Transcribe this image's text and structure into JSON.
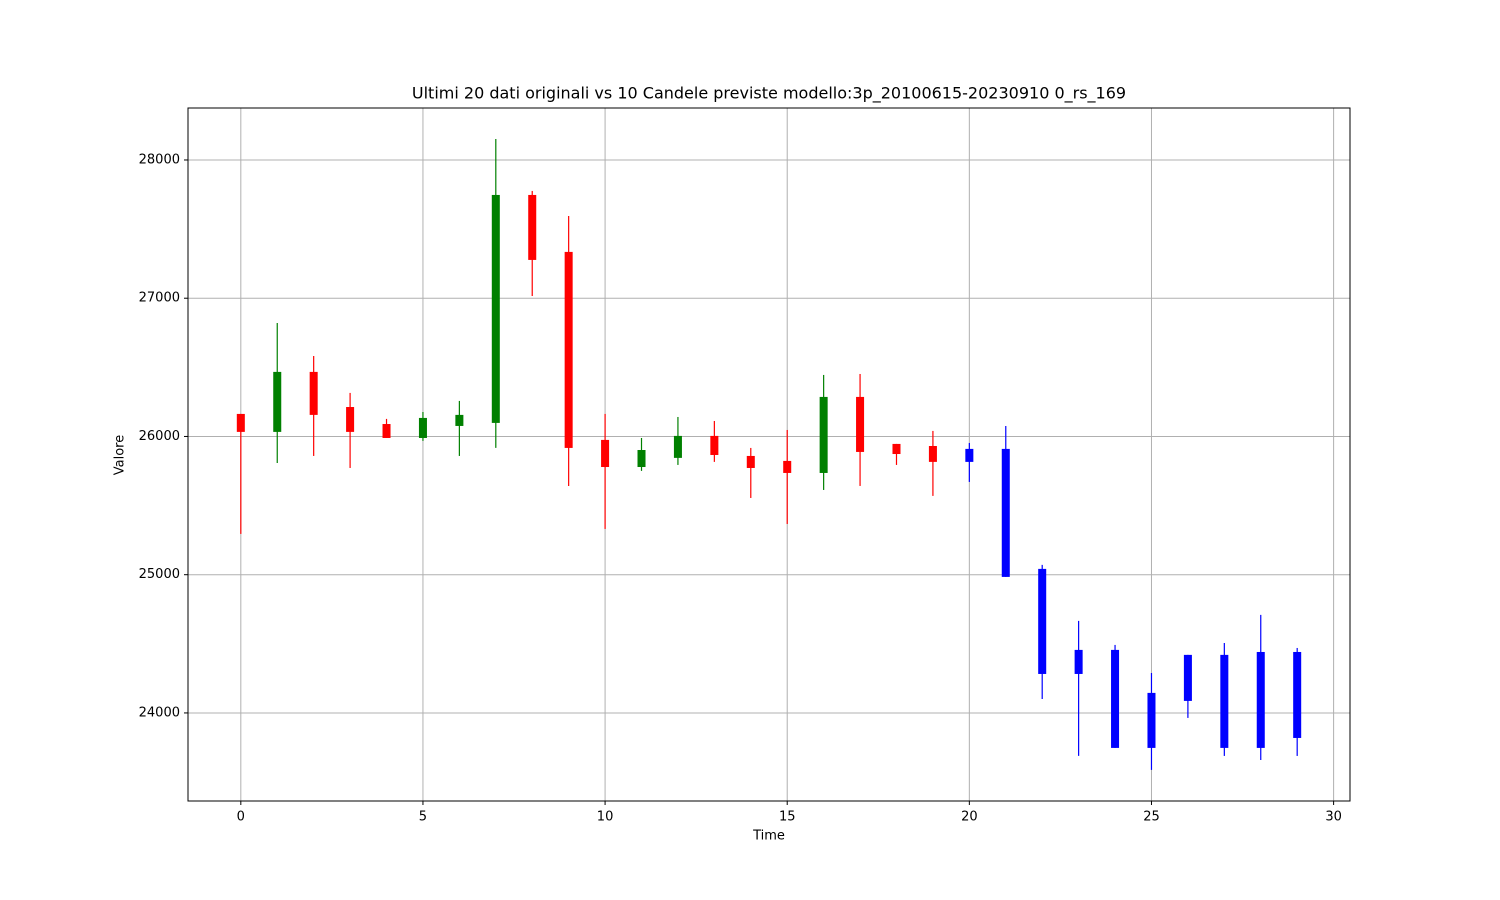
{
  "chart_data": {
    "type": "candlestick",
    "title": "Ultimi 20 dati originali vs 10 Candele previste modello:3p_20100615-20230910 0_rs_169",
    "xlabel": "Time",
    "ylabel": "Valore",
    "x": [
      0,
      1,
      2,
      3,
      4,
      5,
      6,
      7,
      8,
      9,
      10,
      11,
      12,
      13,
      14,
      15,
      16,
      17,
      18,
      19,
      20,
      21,
      22,
      23,
      24,
      25,
      26,
      27,
      28,
      29
    ],
    "open": [
      26163,
      26033,
      26467,
      26213,
      26090,
      25989,
      26076,
      26098,
      27747,
      27335,
      25975,
      25779,
      25845,
      26004,
      25859,
      25823,
      25736,
      26286,
      25946,
      25931,
      25910,
      25910,
      25042,
      24456,
      24456,
      24145,
      24420,
      24420,
      24441,
      24441
    ],
    "high": [
      26163,
      26821,
      26582,
      26315,
      26127,
      26177,
      26257,
      28152,
      27776,
      27595,
      26163,
      25989,
      26141,
      26112,
      25917,
      26047,
      26445,
      26452,
      25946,
      26040,
      25953,
      26076,
      25071,
      24666,
      24492,
      24289,
      24420,
      24506,
      24709,
      24470
    ],
    "low": [
      25295,
      25808,
      25859,
      25772,
      25989,
      25968,
      25859,
      25917,
      27016,
      25642,
      25331,
      25751,
      25794,
      25816,
      25555,
      25367,
      25613,
      25642,
      25794,
      25570,
      25671,
      24984,
      24101,
      23689,
      23747,
      23588,
      23964,
      23689,
      23660,
      23689
    ],
    "close": [
      26033,
      26467,
      26156,
      26033,
      25989,
      26134,
      26156,
      27747,
      27277,
      25917,
      25779,
      25902,
      26004,
      25866,
      25772,
      25736,
      26286,
      25888,
      25873,
      25816,
      25816,
      24984,
      24282,
      24282,
      23747,
      23747,
      24087,
      23747,
      23747,
      23819
    ],
    "colors": [
      "#ff0000",
      "#008000",
      "#ff0000",
      "#ff0000",
      "#ff0000",
      "#008000",
      "#008000",
      "#008000",
      "#ff0000",
      "#ff0000",
      "#ff0000",
      "#008000",
      "#008000",
      "#ff0000",
      "#ff0000",
      "#ff0000",
      "#008000",
      "#ff0000",
      "#ff0000",
      "#ff0000",
      "#0000ff",
      "#0000ff",
      "#0000ff",
      "#0000ff",
      "#0000ff",
      "#0000ff",
      "#0000ff",
      "#0000ff",
      "#0000ff",
      "#0000ff"
    ],
    "xlim": [
      -1.45,
      30.45
    ],
    "ylim": [
      23363,
      28376
    ],
    "xticks": [
      0,
      5,
      10,
      15,
      20,
      25,
      30
    ],
    "yticks": [
      24000,
      25000,
      26000,
      27000,
      28000
    ],
    "grid": true
  }
}
